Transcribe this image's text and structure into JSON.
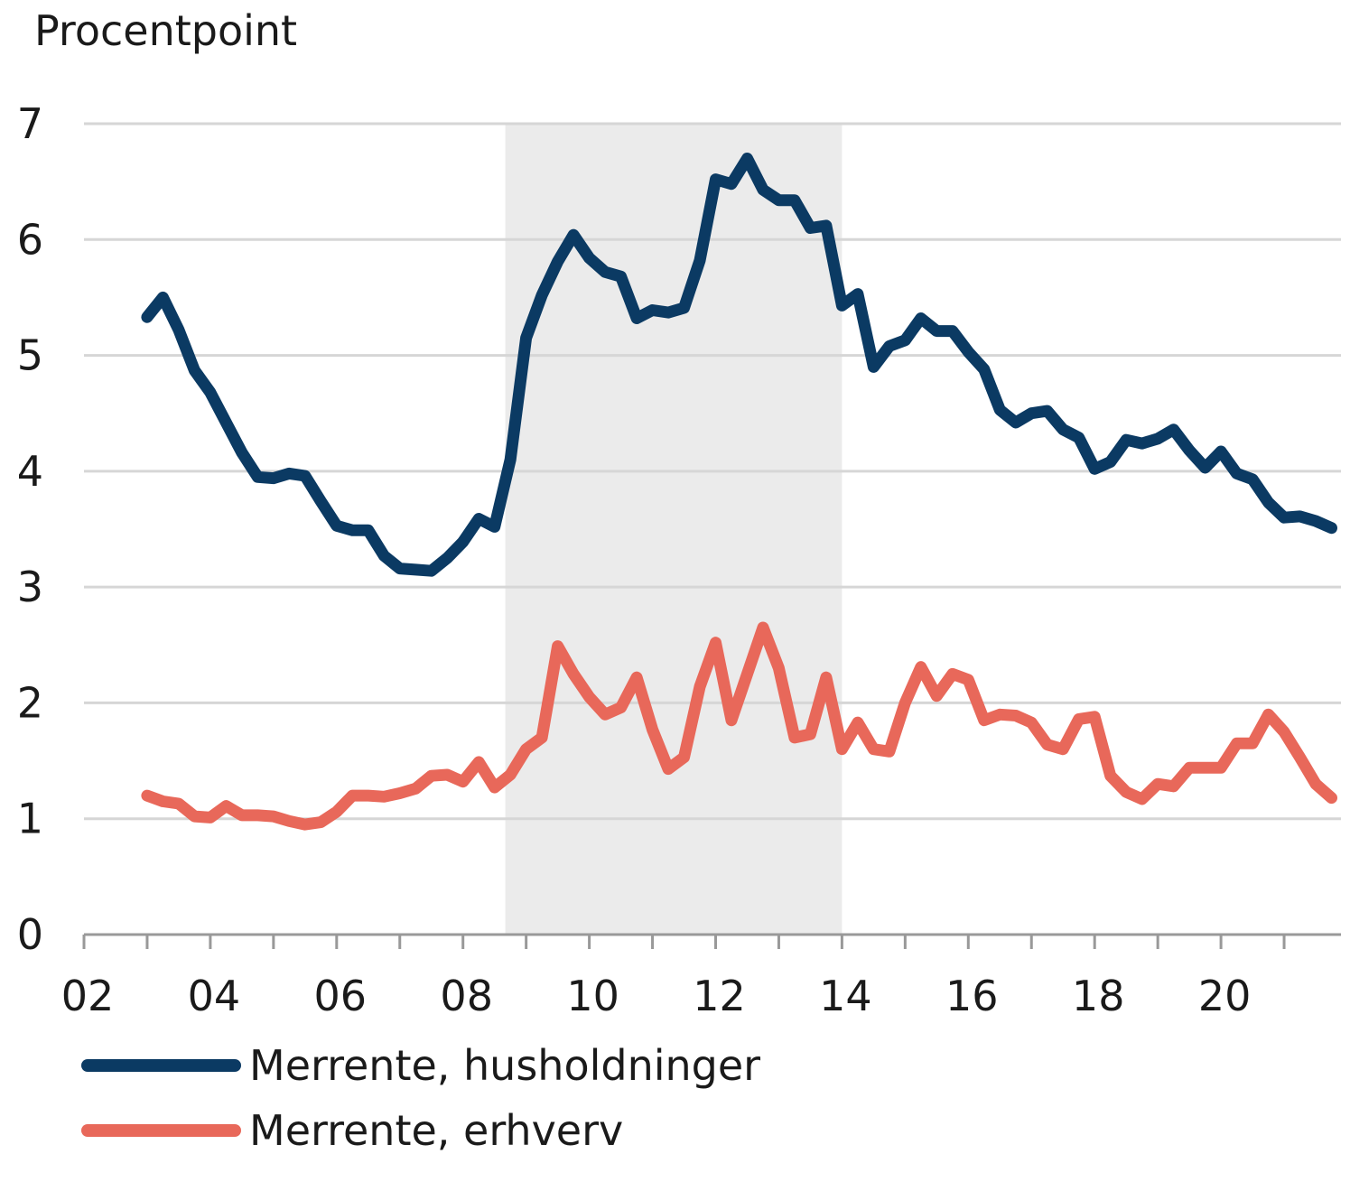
{
  "chart_data": {
    "type": "line",
    "ylabel": "Procentpoint",
    "ylim": [
      0,
      7
    ],
    "yticks": [
      "0",
      "1",
      "2",
      "3",
      "4",
      "5",
      "6",
      "7"
    ],
    "xlim": [
      2002,
      2021.9
    ],
    "xtick_labels": [
      "02",
      "04",
      "06",
      "08",
      "10",
      "12",
      "14",
      "16",
      "18",
      "20"
    ],
    "grid": "horizontal",
    "legend_position": "bottom-left",
    "shaded_period": [
      2008.67,
      2014.0
    ],
    "series": [
      {
        "name": "Merrente, husholdninger",
        "color": "#0b3a63",
        "x": [
          2003.0,
          2003.25,
          2003.5,
          2003.75,
          2004.0,
          2004.25,
          2004.5,
          2004.75,
          2005.0,
          2005.25,
          2005.5,
          2005.75,
          2006.0,
          2006.25,
          2006.5,
          2006.75,
          2007.0,
          2007.25,
          2007.5,
          2007.75,
          2008.0,
          2008.25,
          2008.5,
          2008.75,
          2009.0,
          2009.25,
          2009.5,
          2009.75,
          2010.0,
          2010.25,
          2010.5,
          2010.75,
          2011.0,
          2011.25,
          2011.5,
          2011.75,
          2012.0,
          2012.25,
          2012.5,
          2012.75,
          2013.0,
          2013.25,
          2013.5,
          2013.75,
          2014.0,
          2014.25,
          2014.5,
          2014.75,
          2015.0,
          2015.25,
          2015.5,
          2015.75,
          2016.0,
          2016.25,
          2016.5,
          2016.75,
          2017.0,
          2017.25,
          2017.5,
          2017.75,
          2018.0,
          2018.25,
          2018.5,
          2018.75,
          2019.0,
          2019.25,
          2019.5,
          2019.75,
          2020.0,
          2020.25,
          2020.5,
          2020.75,
          2021.0,
          2021.25,
          2021.5,
          2021.75
        ],
        "values": [
          5.33,
          5.5,
          5.22,
          4.87,
          4.68,
          4.42,
          4.16,
          3.95,
          3.94,
          3.98,
          3.96,
          3.74,
          3.53,
          3.49,
          3.49,
          3.27,
          3.16,
          3.15,
          3.14,
          3.25,
          3.39,
          3.59,
          3.52,
          4.1,
          5.15,
          5.52,
          5.81,
          6.04,
          5.84,
          5.72,
          5.68,
          5.32,
          5.39,
          5.37,
          5.41,
          5.82,
          6.52,
          6.48,
          6.7,
          6.43,
          6.34,
          6.34,
          6.1,
          6.12,
          5.43,
          5.53,
          4.9,
          5.08,
          5.13,
          5.32,
          5.21,
          5.21,
          5.03,
          4.88,
          4.53,
          4.42,
          4.5,
          4.52,
          4.36,
          4.29,
          4.02,
          4.08,
          4.27,
          4.24,
          4.28,
          4.36,
          4.18,
          4.03,
          4.17,
          3.98,
          3.93,
          3.73,
          3.6,
          3.61,
          3.57,
          3.51
        ]
      },
      {
        "name": "Merrente, erhverv",
        "color": "#e8685a",
        "x": [
          2003.0,
          2003.25,
          2003.5,
          2003.75,
          2004.0,
          2004.25,
          2004.5,
          2004.75,
          2005.0,
          2005.25,
          2005.5,
          2005.75,
          2006.0,
          2006.25,
          2006.5,
          2006.75,
          2007.0,
          2007.25,
          2007.5,
          2007.75,
          2008.0,
          2008.25,
          2008.5,
          2008.75,
          2009.0,
          2009.25,
          2009.5,
          2009.75,
          2010.0,
          2010.25,
          2010.5,
          2010.75,
          2011.0,
          2011.25,
          2011.5,
          2011.75,
          2012.0,
          2012.25,
          2012.5,
          2012.75,
          2013.0,
          2013.25,
          2013.5,
          2013.75,
          2014.0,
          2014.25,
          2014.5,
          2014.75,
          2015.0,
          2015.25,
          2015.5,
          2015.75,
          2016.0,
          2016.25,
          2016.5,
          2016.75,
          2017.0,
          2017.25,
          2017.5,
          2017.75,
          2018.0,
          2018.25,
          2018.5,
          2018.75,
          2019.0,
          2019.25,
          2019.5,
          2019.75,
          2020.0,
          2020.25,
          2020.5,
          2020.75,
          2021.0,
          2021.25,
          2021.5,
          2021.75
        ],
        "values": [
          1.2,
          1.15,
          1.13,
          1.02,
          1.01,
          1.11,
          1.03,
          1.03,
          1.02,
          0.98,
          0.95,
          0.97,
          1.06,
          1.2,
          1.2,
          1.19,
          1.22,
          1.26,
          1.37,
          1.38,
          1.32,
          1.49,
          1.27,
          1.38,
          1.6,
          1.7,
          2.49,
          2.25,
          2.05,
          1.9,
          1.96,
          2.22,
          1.77,
          1.43,
          1.53,
          2.14,
          2.52,
          1.85,
          2.25,
          2.65,
          2.3,
          1.7,
          1.73,
          2.22,
          1.6,
          1.83,
          1.6,
          1.58,
          2.0,
          2.31,
          2.06,
          2.25,
          2.2,
          1.85,
          1.9,
          1.89,
          1.83,
          1.64,
          1.6,
          1.86,
          1.88,
          1.37,
          1.23,
          1.17,
          1.3,
          1.28,
          1.44,
          1.44,
          1.44,
          1.65,
          1.65,
          1.9,
          1.75,
          1.53,
          1.3,
          1.18
        ]
      }
    ]
  }
}
